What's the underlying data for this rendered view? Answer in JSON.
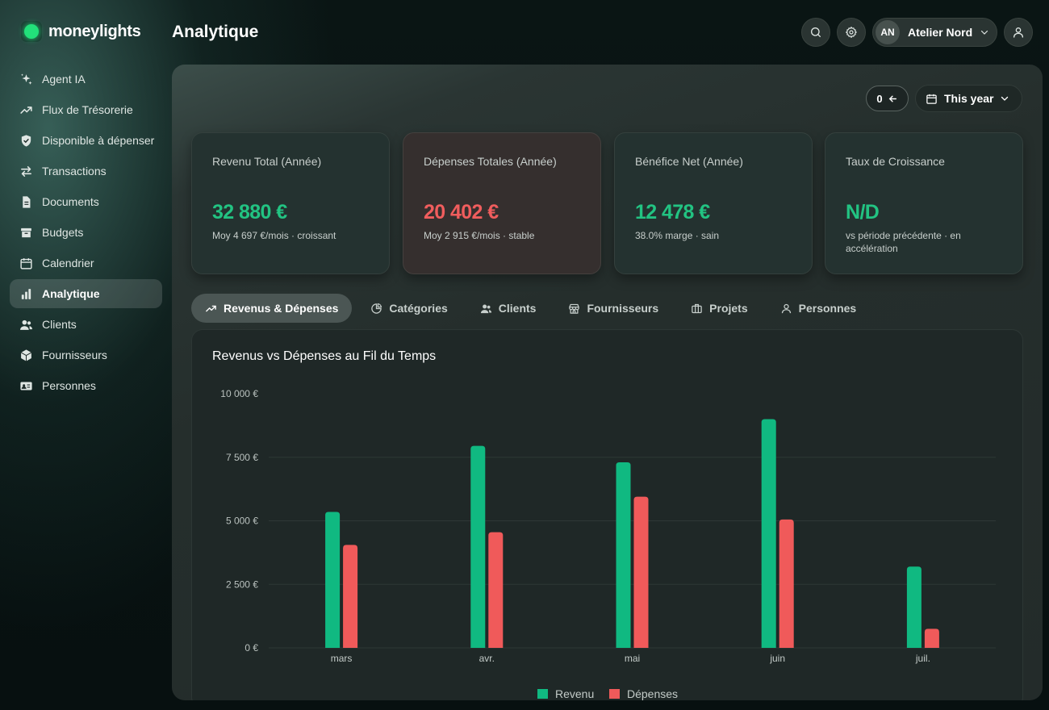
{
  "app": {
    "name": "moneylights",
    "page_title": "Analytique"
  },
  "sidebar": {
    "items": [
      {
        "label": "Agent IA",
        "icon": "sparkles-icon"
      },
      {
        "label": "Flux de Trésorerie",
        "icon": "trending-up-icon"
      },
      {
        "label": "Disponible à dépenser",
        "icon": "shield-check-icon"
      },
      {
        "label": "Transactions",
        "icon": "arrows-swap-icon"
      },
      {
        "label": "Documents",
        "icon": "document-icon"
      },
      {
        "label": "Budgets",
        "icon": "archive-box-icon"
      },
      {
        "label": "Calendrier",
        "icon": "calendar-icon"
      },
      {
        "label": "Analytique",
        "icon": "bar-chart-icon",
        "active": true
      },
      {
        "label": "Clients",
        "icon": "users-icon"
      },
      {
        "label": "Fournisseurs",
        "icon": "cube-icon"
      },
      {
        "label": "Personnes",
        "icon": "id-card-icon"
      }
    ]
  },
  "header": {
    "org_initials": "AN",
    "org_name": "Atelier Nord"
  },
  "toolbar": {
    "counter_label": "0",
    "range_label": "This year"
  },
  "cards": [
    {
      "label": "Revenu Total (Année)",
      "value": "32 880 €",
      "sub": "Moy 4 697 €/mois · croissant",
      "tone": "green"
    },
    {
      "label": "Dépenses Totales (Année)",
      "value": "20 402 €",
      "sub": "Moy 2 915 €/mois · stable",
      "tone": "red"
    },
    {
      "label": "Bénéfice Net (Année)",
      "value": "12 478 €",
      "sub": "38.0% marge · sain",
      "tone": "green"
    },
    {
      "label": "Taux de Croissance",
      "value": "N/D",
      "sub": "vs période précédente · en accélération",
      "tone": "green"
    }
  ],
  "tabs": [
    {
      "label": "Revenus & Dépenses",
      "icon": "trending-up-icon",
      "active": true
    },
    {
      "label": "Catégories",
      "icon": "pie-chart-icon"
    },
    {
      "label": "Clients",
      "icon": "users-icon"
    },
    {
      "label": "Fournisseurs",
      "icon": "store-icon"
    },
    {
      "label": "Projets",
      "icon": "briefcase-icon"
    },
    {
      "label": "Personnes",
      "icon": "user-icon"
    }
  ],
  "colors": {
    "revenue": "#10b981",
    "expenses": "#f05a5a",
    "accent": "#22e07a"
  },
  "chart_data": {
    "type": "bar",
    "title": "Revenus vs Dépenses au Fil du Temps",
    "categories": [
      "mars",
      "avr.",
      "mai",
      "juin",
      "juil."
    ],
    "series": [
      {
        "name": "Revenu",
        "values": [
          5350,
          7950,
          7300,
          9000,
          3200
        ]
      },
      {
        "name": "Dépenses",
        "values": [
          4050,
          4550,
          5950,
          5050,
          750
        ]
      }
    ],
    "ylim": [
      0,
      10000
    ],
    "yticks": [
      "0 €",
      "2 500 €",
      "5 000 €",
      "7 500 €",
      "10 000 €"
    ],
    "ytick_values": [
      0,
      2500,
      5000,
      7500,
      10000
    ],
    "grid": true,
    "legend": "bottom-center"
  }
}
